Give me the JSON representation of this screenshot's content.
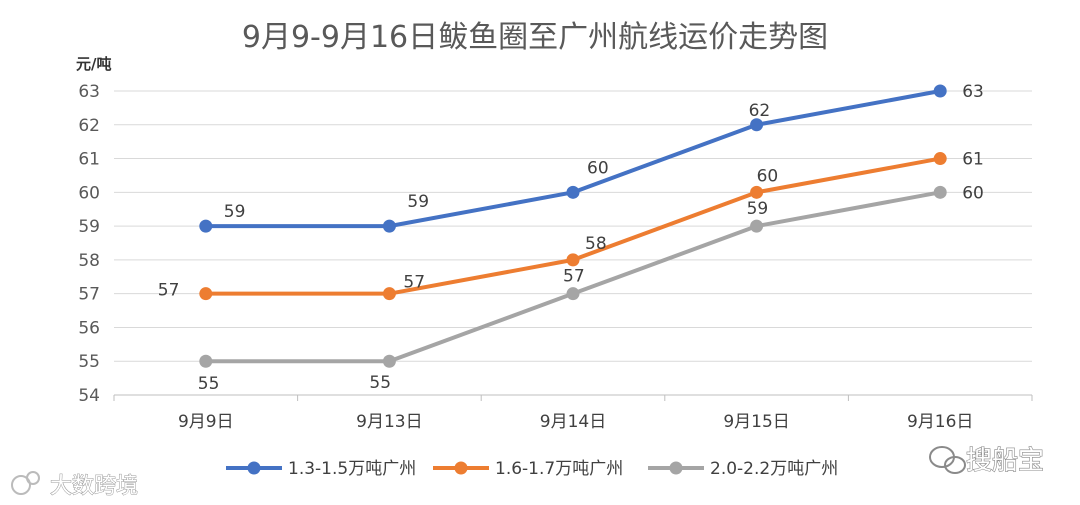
{
  "chart_data": {
    "type": "line",
    "title": "9月9-9月16日鲅鱼圈至广州航线运价走势图",
    "ylabel": "元/吨",
    "categories": [
      "9月9日",
      "9月13日",
      "9月14日",
      "9月15日",
      "9月16日"
    ],
    "ylim": [
      54,
      63
    ],
    "yticks": [
      54,
      55,
      56,
      57,
      58,
      59,
      60,
      61,
      62,
      63
    ],
    "grid": true,
    "legend_position": "bottom",
    "series": [
      {
        "name": "1.3-1.5万吨广州",
        "color": "#4472C4",
        "values": [
          59,
          59,
          60,
          62,
          63
        ]
      },
      {
        "name": "1.6-1.7万吨广州",
        "color": "#ED7D31",
        "values": [
          57,
          57,
          58,
          60,
          61
        ]
      },
      {
        "name": "2.0-2.2万吨广州",
        "color": "#A5A5A5",
        "values": [
          55,
          55,
          57,
          59,
          60
        ]
      }
    ]
  },
  "watermarks": {
    "left": "大数跨境",
    "right": "搜船宝"
  }
}
